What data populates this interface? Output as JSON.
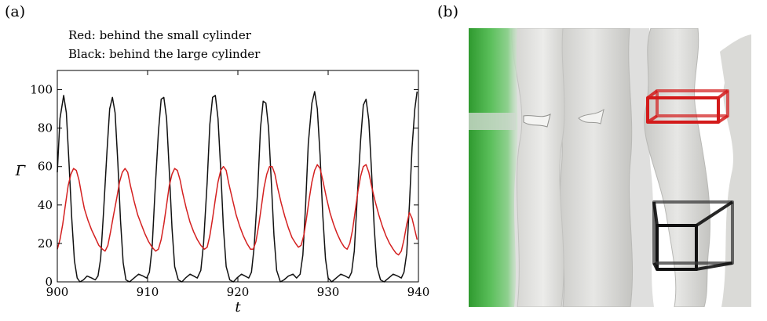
{
  "panels": {
    "a_label": "(a)",
    "b_label": "(b)"
  },
  "notes": {
    "red": "Red: behind the small cylinder",
    "black": "Black: behind the large cylinder"
  },
  "chart_data": {
    "type": "line",
    "xlabel": "t",
    "ylabel": "Γ̄",
    "xlim": [
      900,
      940
    ],
    "ylim": [
      0,
      110
    ],
    "xticks": [
      900,
      910,
      920,
      930,
      940
    ],
    "yticks": [
      0,
      20,
      40,
      60,
      80,
      100
    ],
    "grid": false,
    "series": [
      {
        "color": "#111111",
        "values": [
          [
            900.0,
            57
          ],
          [
            900.3,
            85
          ],
          [
            900.7,
            97
          ],
          [
            901.0,
            88
          ],
          [
            901.3,
            62
          ],
          [
            901.6,
            33
          ],
          [
            901.9,
            11
          ],
          [
            902.2,
            2
          ],
          [
            902.5,
            0
          ],
          [
            902.9,
            1
          ],
          [
            903.3,
            3
          ],
          [
            903.8,
            2
          ],
          [
            904.2,
            1
          ],
          [
            904.5,
            3
          ],
          [
            904.8,
            12
          ],
          [
            905.1,
            35
          ],
          [
            905.5,
            68
          ],
          [
            905.8,
            90
          ],
          [
            906.1,
            96
          ],
          [
            906.4,
            88
          ],
          [
            906.7,
            62
          ],
          [
            907.0,
            32
          ],
          [
            907.3,
            10
          ],
          [
            907.6,
            1
          ],
          [
            908.0,
            0
          ],
          [
            908.5,
            2
          ],
          [
            909.0,
            4
          ],
          [
            909.5,
            3
          ],
          [
            909.9,
            2
          ],
          [
            910.2,
            5
          ],
          [
            910.5,
            18
          ],
          [
            910.8,
            45
          ],
          [
            911.2,
            78
          ],
          [
            911.5,
            95
          ],
          [
            911.8,
            96
          ],
          [
            912.1,
            85
          ],
          [
            912.4,
            58
          ],
          [
            912.7,
            28
          ],
          [
            913.0,
            8
          ],
          [
            913.4,
            1
          ],
          [
            913.8,
            0
          ],
          [
            914.2,
            2
          ],
          [
            914.7,
            4
          ],
          [
            915.1,
            3
          ],
          [
            915.5,
            2
          ],
          [
            915.9,
            6
          ],
          [
            916.2,
            20
          ],
          [
            916.6,
            52
          ],
          [
            916.9,
            82
          ],
          [
            917.2,
            96
          ],
          [
            917.5,
            97
          ],
          [
            917.8,
            85
          ],
          [
            918.1,
            58
          ],
          [
            918.4,
            28
          ],
          [
            918.7,
            8
          ],
          [
            919.1,
            1
          ],
          [
            919.5,
            0
          ],
          [
            919.9,
            2
          ],
          [
            920.4,
            4
          ],
          [
            920.8,
            3
          ],
          [
            921.2,
            2
          ],
          [
            921.5,
            5
          ],
          [
            921.8,
            18
          ],
          [
            922.2,
            48
          ],
          [
            922.5,
            80
          ],
          [
            922.8,
            94
          ],
          [
            923.1,
            93
          ],
          [
            923.4,
            80
          ],
          [
            923.7,
            52
          ],
          [
            924.0,
            24
          ],
          [
            924.3,
            6
          ],
          [
            924.7,
            0
          ],
          [
            925.1,
            1
          ],
          [
            925.6,
            3
          ],
          [
            926.1,
            4
          ],
          [
            926.5,
            2
          ],
          [
            926.9,
            4
          ],
          [
            927.2,
            14
          ],
          [
            927.5,
            40
          ],
          [
            927.8,
            72
          ],
          [
            928.2,
            93
          ],
          [
            928.5,
            99
          ],
          [
            928.8,
            90
          ],
          [
            929.1,
            66
          ],
          [
            929.4,
            35
          ],
          [
            929.7,
            12
          ],
          [
            930.0,
            2
          ],
          [
            930.4,
            0
          ],
          [
            930.9,
            2
          ],
          [
            931.4,
            4
          ],
          [
            931.9,
            3
          ],
          [
            932.3,
            2
          ],
          [
            932.6,
            5
          ],
          [
            932.9,
            16
          ],
          [
            933.2,
            42
          ],
          [
            933.6,
            74
          ],
          [
            933.9,
            92
          ],
          [
            934.2,
            95
          ],
          [
            934.5,
            84
          ],
          [
            934.8,
            58
          ],
          [
            935.1,
            28
          ],
          [
            935.4,
            8
          ],
          [
            935.8,
            1
          ],
          [
            936.2,
            0
          ],
          [
            936.7,
            2
          ],
          [
            937.2,
            4
          ],
          [
            937.7,
            3
          ],
          [
            938.1,
            2
          ],
          [
            938.4,
            5
          ],
          [
            938.7,
            15
          ],
          [
            939.0,
            40
          ],
          [
            939.3,
            70
          ],
          [
            939.6,
            90
          ],
          [
            939.85,
            99
          ]
        ]
      },
      {
        "color": "#d42020",
        "values": [
          [
            900.0,
            17
          ],
          [
            900.3,
            22
          ],
          [
            900.6,
            30
          ],
          [
            900.9,
            40
          ],
          [
            901.2,
            50
          ],
          [
            901.5,
            56
          ],
          [
            901.8,
            59
          ],
          [
            902.1,
            58
          ],
          [
            902.4,
            53
          ],
          [
            902.7,
            45
          ],
          [
            903.0,
            38
          ],
          [
            903.4,
            32
          ],
          [
            903.8,
            27
          ],
          [
            904.2,
            23
          ],
          [
            904.6,
            19
          ],
          [
            905.0,
            17
          ],
          [
            905.3,
            16
          ],
          [
            905.6,
            19
          ],
          [
            905.9,
            26
          ],
          [
            906.2,
            34
          ],
          [
            906.6,
            44
          ],
          [
            906.9,
            52
          ],
          [
            907.2,
            57
          ],
          [
            907.5,
            59
          ],
          [
            907.8,
            57
          ],
          [
            908.1,
            50
          ],
          [
            908.5,
            42
          ],
          [
            908.9,
            35
          ],
          [
            909.3,
            30
          ],
          [
            909.7,
            25
          ],
          [
            910.1,
            21
          ],
          [
            910.5,
            18
          ],
          [
            910.9,
            16
          ],
          [
            911.2,
            17
          ],
          [
            911.5,
            22
          ],
          [
            911.8,
            30
          ],
          [
            912.1,
            40
          ],
          [
            912.4,
            50
          ],
          [
            912.7,
            56
          ],
          [
            913.0,
            59
          ],
          [
            913.3,
            58
          ],
          [
            913.6,
            53
          ],
          [
            913.9,
            46
          ],
          [
            914.3,
            38
          ],
          [
            914.7,
            31
          ],
          [
            915.1,
            26
          ],
          [
            915.5,
            22
          ],
          [
            915.9,
            19
          ],
          [
            916.3,
            17
          ],
          [
            916.6,
            18
          ],
          [
            916.9,
            24
          ],
          [
            917.2,
            33
          ],
          [
            917.5,
            43
          ],
          [
            917.8,
            52
          ],
          [
            918.1,
            58
          ],
          [
            918.4,
            60
          ],
          [
            918.7,
            58
          ],
          [
            919.0,
            51
          ],
          [
            919.4,
            43
          ],
          [
            919.8,
            35
          ],
          [
            920.2,
            29
          ],
          [
            920.6,
            24
          ],
          [
            921.0,
            20
          ],
          [
            921.4,
            17
          ],
          [
            921.7,
            17
          ],
          [
            922.0,
            21
          ],
          [
            922.3,
            29
          ],
          [
            922.6,
            39
          ],
          [
            922.9,
            49
          ],
          [
            923.2,
            56
          ],
          [
            923.5,
            60
          ],
          [
            923.8,
            60
          ],
          [
            924.1,
            56
          ],
          [
            924.4,
            49
          ],
          [
            924.8,
            41
          ],
          [
            925.2,
            34
          ],
          [
            925.6,
            28
          ],
          [
            926.0,
            23
          ],
          [
            926.4,
            20
          ],
          [
            926.7,
            18
          ],
          [
            927.0,
            19
          ],
          [
            927.3,
            24
          ],
          [
            927.6,
            33
          ],
          [
            927.9,
            43
          ],
          [
            928.2,
            52
          ],
          [
            928.5,
            58
          ],
          [
            928.8,
            61
          ],
          [
            929.1,
            59
          ],
          [
            929.4,
            53
          ],
          [
            929.8,
            44
          ],
          [
            930.2,
            36
          ],
          [
            930.6,
            30
          ],
          [
            931.0,
            25
          ],
          [
            931.4,
            21
          ],
          [
            931.8,
            18
          ],
          [
            932.1,
            17
          ],
          [
            932.4,
            20
          ],
          [
            932.7,
            27
          ],
          [
            933.0,
            37
          ],
          [
            933.3,
            47
          ],
          [
            933.6,
            55
          ],
          [
            933.9,
            60
          ],
          [
            934.2,
            61
          ],
          [
            934.5,
            57
          ],
          [
            934.8,
            50
          ],
          [
            935.2,
            42
          ],
          [
            935.6,
            35
          ],
          [
            936.0,
            29
          ],
          [
            936.4,
            24
          ],
          [
            936.8,
            20
          ],
          [
            937.2,
            17
          ],
          [
            937.5,
            15
          ],
          [
            937.8,
            14
          ],
          [
            938.1,
            16
          ],
          [
            938.4,
            22
          ],
          [
            938.7,
            30
          ],
          [
            939.0,
            36
          ],
          [
            939.3,
            33
          ],
          [
            939.6,
            27
          ],
          [
            939.85,
            22
          ]
        ]
      }
    ]
  },
  "scene": {
    "green_wall_color": "#4cae4c",
    "surface_color": "#d8d8d6",
    "red_box_color": "#d31a1a",
    "black_box_color": "#111111"
  }
}
